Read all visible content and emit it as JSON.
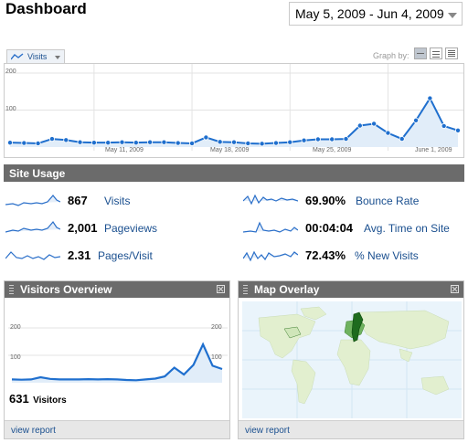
{
  "page": {
    "title": "Dashboard"
  },
  "date_range": {
    "label": "May 5, 2009 - Jun 4, 2009"
  },
  "graph_controls": {
    "metric_dropdown": "Visits",
    "graph_by_label": "Graph by:"
  },
  "chart_data": [
    {
      "type": "line",
      "series": [
        {
          "values": [
            12,
            11,
            10,
            22,
            19,
            13,
            12,
            12,
            13,
            12,
            13,
            13,
            11,
            10,
            26,
            14,
            13,
            10,
            9,
            11,
            13,
            18,
            21,
            21,
            22,
            58,
            63,
            38,
            22,
            72,
            132,
            57,
            45
          ]
        }
      ],
      "ytick_labels": [
        "100",
        "200"
      ],
      "xtick_labels": [
        "May 11, 2009",
        "May 18, 2009",
        "May 25, 2009",
        "June 1, 2009"
      ],
      "ylim": [
        0,
        200
      ],
      "grid": true,
      "colors": {
        "line": "#1f6fce",
        "fill": "#e1edf9"
      }
    },
    {
      "type": "line",
      "series": [
        {
          "values": [
            12,
            11,
            12,
            20,
            14,
            12,
            12,
            12,
            13,
            12,
            13,
            12,
            10,
            9,
            12,
            15,
            23,
            55,
            30,
            65,
            140,
            62,
            50
          ]
        }
      ],
      "ytick_labels": [
        "100",
        "200"
      ],
      "ylim": [
        0,
        200
      ],
      "grid": true,
      "colors": {
        "line": "#1f6fce",
        "fill": "#e1edf9"
      }
    }
  ],
  "site_usage": {
    "header": "Site Usage",
    "metrics": [
      {
        "value": "867",
        "label": "Visits"
      },
      {
        "value": "2,001",
        "label": "Pageviews"
      },
      {
        "value": "2.31",
        "label": "Pages/Visit"
      },
      {
        "value": "69.90%",
        "label": "Bounce Rate"
      },
      {
        "value": "00:04:04",
        "label": "Avg. Time on Site"
      },
      {
        "value": "72.43%",
        "label": "% New Visits"
      }
    ]
  },
  "visitors_overview": {
    "header": "Visitors Overview",
    "count": "631",
    "count_label": "Visitors",
    "footer_link": "view report"
  },
  "map_overlay": {
    "header": "Map Overlay",
    "footer_link": "view report"
  }
}
